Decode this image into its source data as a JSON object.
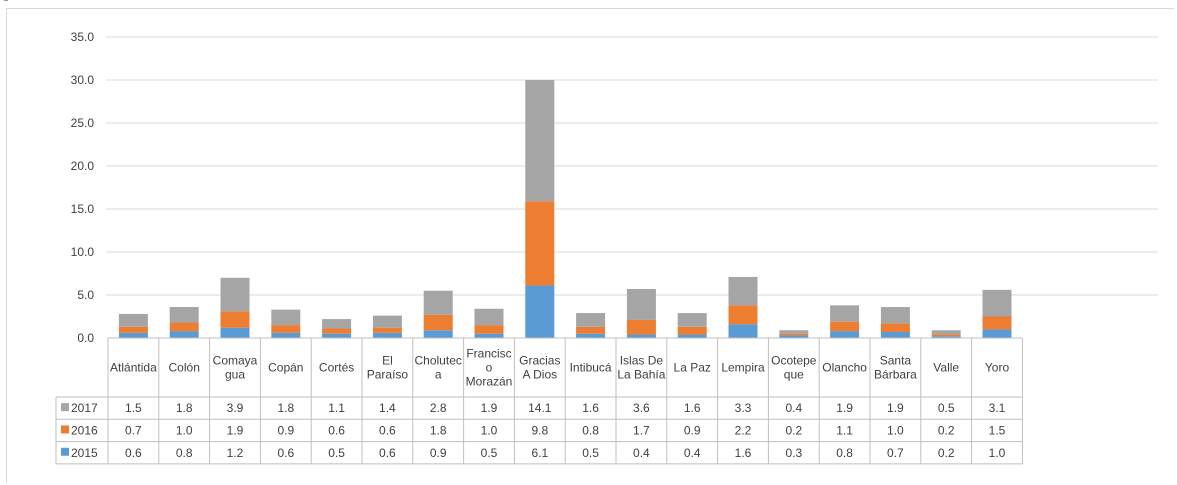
{
  "chart_data": {
    "type": "bar",
    "stacked": true,
    "title": "",
    "xlabel": "",
    "ylabel": "",
    "ylim": [
      0,
      35
    ],
    "yticks": [
      "0.0",
      "5.0",
      "10.0",
      "15.0",
      "20.0",
      "25.0",
      "30.0",
      "35.0"
    ],
    "grid": true,
    "legend": "table-left",
    "categories": [
      [
        "Atlántida"
      ],
      [
        "Colón"
      ],
      [
        "Comaya",
        "gua"
      ],
      [
        "Copán"
      ],
      [
        "Cortés"
      ],
      [
        "El",
        "Paraíso"
      ],
      [
        "Cholutec",
        "a"
      ],
      [
        "Francisc",
        "o",
        "Morazán"
      ],
      [
        "Gracias",
        "A Dios"
      ],
      [
        "Intibucá"
      ],
      [
        "Islas De",
        "La Bahía"
      ],
      [
        "La Paz"
      ],
      [
        "Lempira"
      ],
      [
        "Ocotepe",
        "que"
      ],
      [
        "Olancho"
      ],
      [
        "Santa",
        "Bárbara"
      ],
      [
        "Valle"
      ],
      [
        "Yoro"
      ]
    ],
    "series": [
      {
        "name": "2015",
        "color": "#5b9bd5",
        "values": [
          "0.6",
          "0.8",
          "1.2",
          "0.6",
          "0.5",
          "0.6",
          "0.9",
          "0.5",
          "6.1",
          "0.5",
          "0.4",
          "0.4",
          "1.6",
          "0.3",
          "0.8",
          "0.7",
          "0.2",
          "1.0"
        ]
      },
      {
        "name": "2016",
        "color": "#ed7d31",
        "values": [
          "0.7",
          "1.0",
          "1.9",
          "0.9",
          "0.6",
          "0.6",
          "1.8",
          "1.0",
          "9.8",
          "0.8",
          "1.7",
          "0.9",
          "2.2",
          "0.2",
          "1.1",
          "1.0",
          "0.2",
          "1.5"
        ]
      },
      {
        "name": "2017",
        "color": "#a5a5a5",
        "values": [
          "1.5",
          "1.8",
          "3.9",
          "1.8",
          "1.1",
          "1.4",
          "2.8",
          "1.9",
          "14.1",
          "1.6",
          "3.6",
          "1.6",
          "3.3",
          "0.4",
          "1.9",
          "1.9",
          "0.5",
          "3.1"
        ]
      }
    ]
  }
}
